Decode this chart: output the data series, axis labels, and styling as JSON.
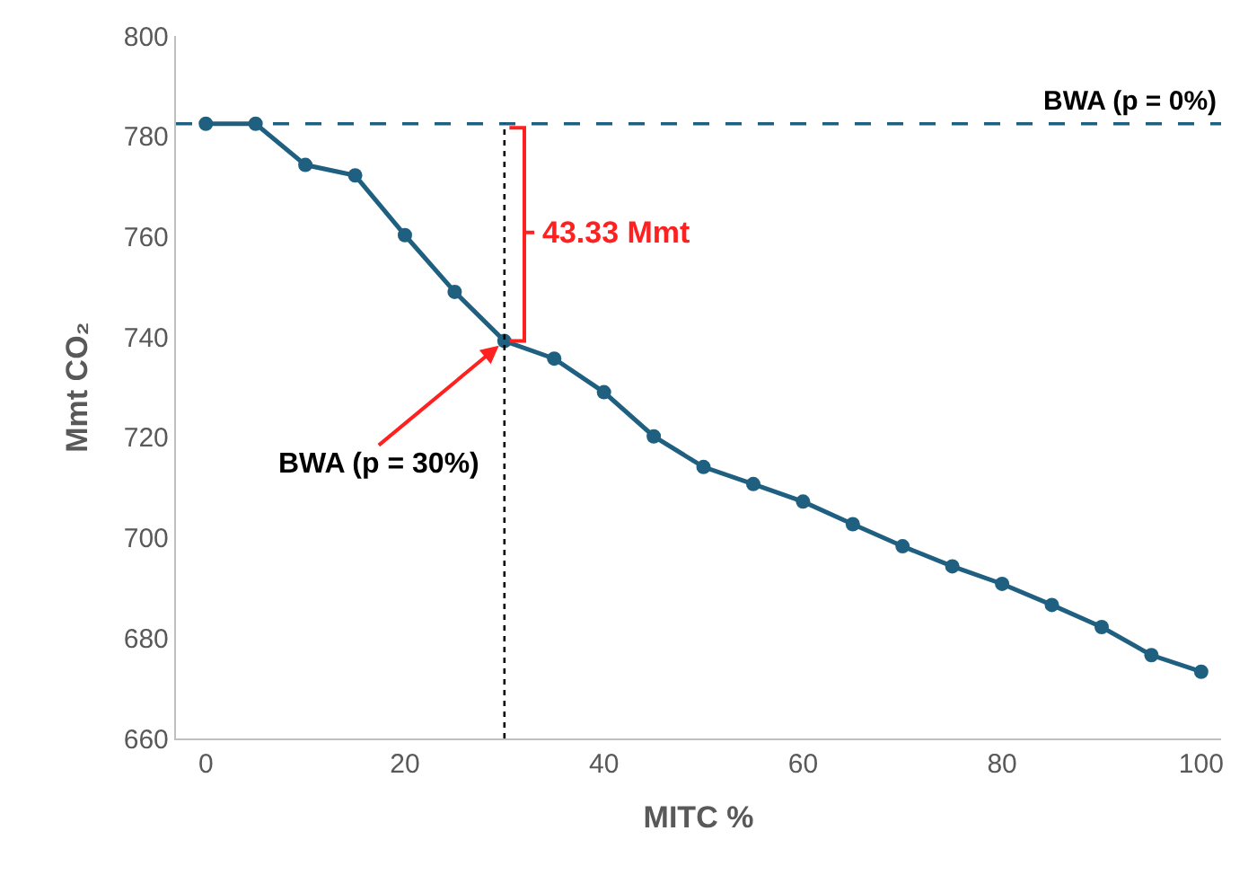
{
  "chart_data": {
    "type": "line",
    "xlabel": "MITC %",
    "ylabel": "Mmt CO₂",
    "x": [
      0,
      5,
      10,
      15,
      20,
      25,
      30,
      35,
      40,
      45,
      50,
      55,
      60,
      65,
      70,
      75,
      80,
      85,
      90,
      95,
      100
    ],
    "series": [
      {
        "color": "#1f5f80",
        "values": [
          782.5,
          782.5,
          774.3,
          772.2,
          760.3,
          749,
          739.2,
          735.7,
          729,
          720.2,
          714.1,
          710.7,
          707.2,
          702.7,
          698.3,
          694.3,
          690.8,
          686.6,
          682.2,
          676.6,
          673.3
        ]
      }
    ],
    "xlim": [
      -3,
      102
    ],
    "xticks": [
      0,
      20,
      40,
      60,
      80,
      100
    ],
    "ylim": [
      660,
      800
    ],
    "yticks": [
      660,
      680,
      700,
      720,
      740,
      760,
      780,
      800
    ],
    "ref_lines": [
      {
        "axis": "y",
        "value": 782.5,
        "color": "#1f5f80",
        "line_style": "dashed"
      },
      {
        "axis": "x",
        "value": 30,
        "label": null,
        "color": "#000000",
        "line_style": "dotted"
      }
    ],
    "annotations": [
      "BWA (p = 0%)",
      {
        "text": "BWA (p = 30%)",
        "x": 30,
        "y": 739.2
      },
      "43.33 Mmt"
    ],
    "marker": "circle",
    "line_style": "solid"
  }
}
